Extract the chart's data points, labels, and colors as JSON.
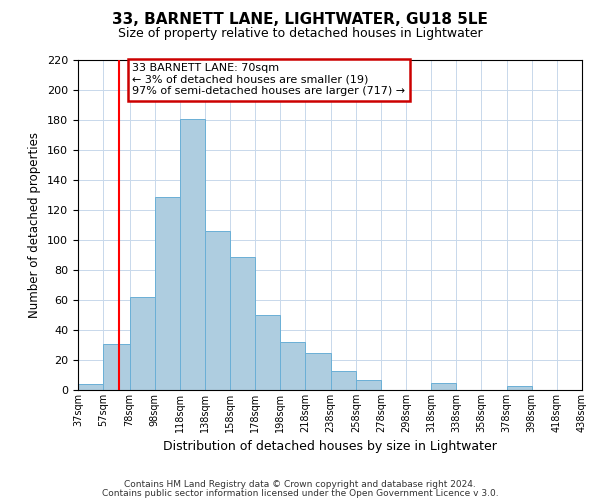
{
  "title": "33, BARNETT LANE, LIGHTWATER, GU18 5LE",
  "subtitle": "Size of property relative to detached houses in Lightwater",
  "xlabel": "Distribution of detached houses by size in Lightwater",
  "ylabel": "Number of detached properties",
  "bar_color": "#aecde0",
  "bar_edge_color": "#6aafd6",
  "background_color": "#ffffff",
  "grid_color": "#c8d8eb",
  "annotation_title": "33 BARNETT LANE: 70sqm",
  "annotation_line1": "← 3% of detached houses are smaller (19)",
  "annotation_line2": "97% of semi-detached houses are larger (717) →",
  "redline_x": 70,
  "ylim": [
    0,
    220
  ],
  "yticks": [
    0,
    20,
    40,
    60,
    80,
    100,
    120,
    140,
    160,
    180,
    200,
    220
  ],
  "bins": [
    37,
    57,
    78,
    98,
    118,
    138,
    158,
    178,
    198,
    218,
    238,
    258,
    278,
    298,
    318,
    338,
    358,
    378,
    398,
    418,
    438
  ],
  "counts": [
    4,
    31,
    62,
    129,
    181,
    106,
    89,
    50,
    32,
    25,
    13,
    7,
    0,
    0,
    5,
    0,
    0,
    3,
    0,
    0
  ],
  "footer1": "Contains HM Land Registry data © Crown copyright and database right 2024.",
  "footer2": "Contains public sector information licensed under the Open Government Licence v 3.0.",
  "bar_linewidth": 0.7
}
